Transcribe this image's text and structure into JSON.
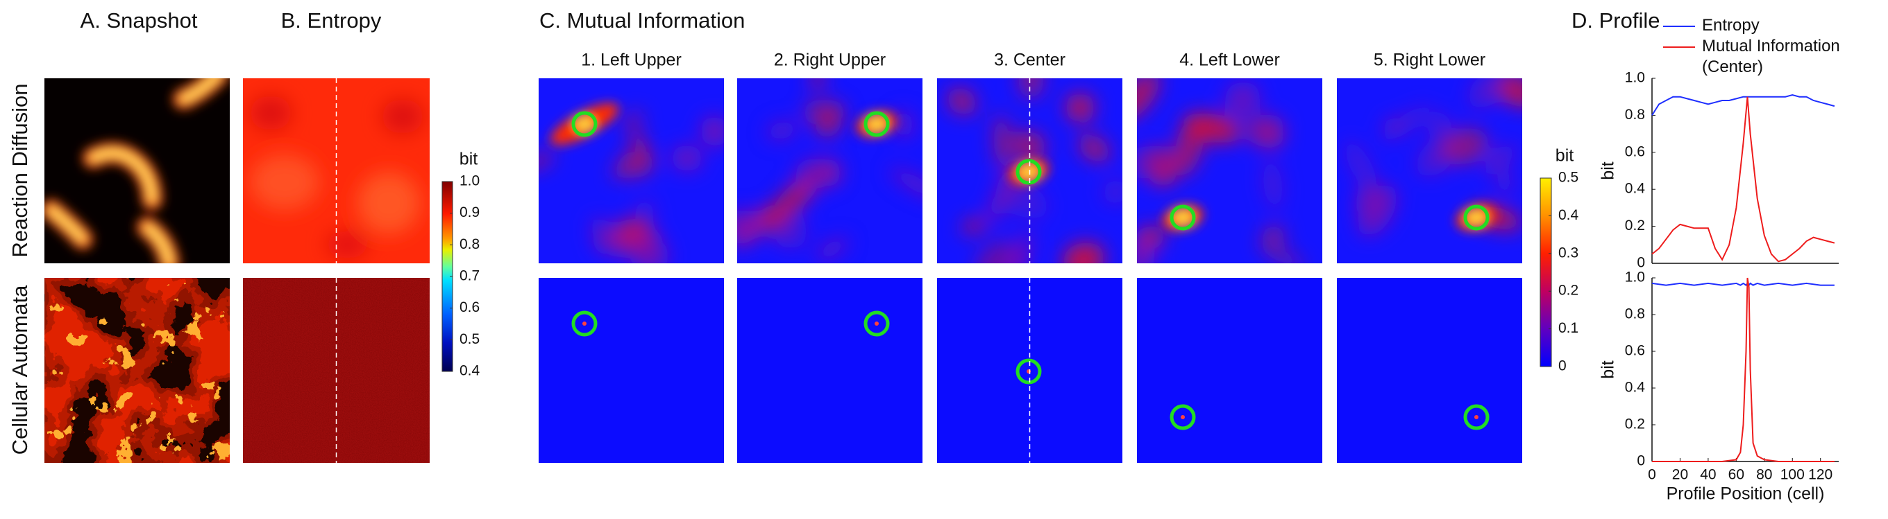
{
  "panels": {
    "a": {
      "title": "A. Snapshot"
    },
    "b": {
      "title": "B. Entropy"
    },
    "c": {
      "title": "C. Mutual Information",
      "columns": [
        "1. Left Upper",
        "2. Right Upper",
        "3. Center",
        "4. Left Lower",
        "5. Right Lower"
      ]
    },
    "d": {
      "title": "D. Profile"
    }
  },
  "rows": [
    "Reaction Diffusion",
    "Cellular Automata"
  ],
  "colorbars": [
    {
      "label": "bit",
      "lim": [
        0.4,
        1.0
      ],
      "ticks": [
        0.4,
        0.5,
        0.6,
        0.7,
        0.8,
        0.9,
        {
          "value": 1.0,
          "label": "1.0"
        }
      ]
    },
    {
      "label": "bit",
      "lim": [
        0,
        0.5
      ],
      "ticks": [
        0,
        0.1,
        0.2,
        0.3,
        0.4,
        0.5
      ]
    }
  ],
  "chart_data": [
    {
      "type": "line",
      "ylabel": "bit",
      "x": [
        0,
        5,
        10,
        15,
        20,
        25,
        30,
        35,
        40,
        45,
        50,
        55,
        60,
        65,
        68,
        70,
        75,
        80,
        85,
        90,
        95,
        100,
        105,
        110,
        115,
        120,
        125,
        130
      ],
      "xlim": [
        0,
        133
      ],
      "ylim": [
        0,
        1
      ],
      "yticks": [
        0,
        0.2,
        0.4,
        0.6,
        0.8,
        {
          "value": 1.0,
          "label": "1.0"
        }
      ],
      "series": [
        {
          "name": "Entropy",
          "color": "#1f2fff",
          "values": [
            0.8,
            0.86,
            0.88,
            0.9,
            0.9,
            0.89,
            0.88,
            0.87,
            0.86,
            0.87,
            0.88,
            0.88,
            0.89,
            0.9,
            0.9,
            0.9,
            0.9,
            0.9,
            0.9,
            0.9,
            0.9,
            0.91,
            0.9,
            0.9,
            0.88,
            0.87,
            0.86,
            0.85
          ]
        },
        {
          "name": "Mutual Information (Center)",
          "color": "#ee1c1c",
          "values": [
            0.05,
            0.08,
            0.13,
            0.18,
            0.21,
            0.2,
            0.19,
            0.19,
            0.19,
            0.08,
            0.02,
            0.1,
            0.3,
            0.65,
            0.9,
            0.7,
            0.35,
            0.15,
            0.05,
            0.01,
            0.02,
            0.05,
            0.08,
            0.12,
            0.14,
            0.13,
            0.12,
            0.11
          ]
        }
      ]
    },
    {
      "type": "line",
      "ylabel": "bit",
      "xlabel": "Profile Position (cell)",
      "x": [
        0,
        10,
        20,
        30,
        40,
        50,
        60,
        63,
        65,
        67,
        68,
        69,
        70,
        72,
        75,
        80,
        90,
        100,
        110,
        120,
        130
      ],
      "xlim": [
        0,
        133
      ],
      "ylim": [
        0,
        1
      ],
      "xticks": [
        0,
        20,
        40,
        60,
        80,
        100,
        120
      ],
      "yticks": [
        0,
        0.2,
        0.4,
        0.6,
        0.8,
        {
          "value": 1.0,
          "label": "1.0"
        }
      ],
      "series": [
        {
          "color": "#1f2fff",
          "values": [
            0.97,
            0.96,
            0.97,
            0.96,
            0.97,
            0.96,
            0.97,
            0.96,
            0.97,
            0.96,
            0.97,
            0.96,
            0.97,
            0.96,
            0.97,
            0.96,
            0.97,
            0.96,
            0.97,
            0.96,
            0.96
          ]
        },
        {
          "color": "#ee1c1c",
          "values": [
            0,
            0,
            0,
            0,
            0,
            0,
            0.01,
            0.05,
            0.2,
            0.6,
            1.0,
            0.95,
            0.5,
            0.1,
            0.03,
            0.01,
            0,
            0,
            0,
            0,
            0
          ]
        }
      ]
    }
  ]
}
